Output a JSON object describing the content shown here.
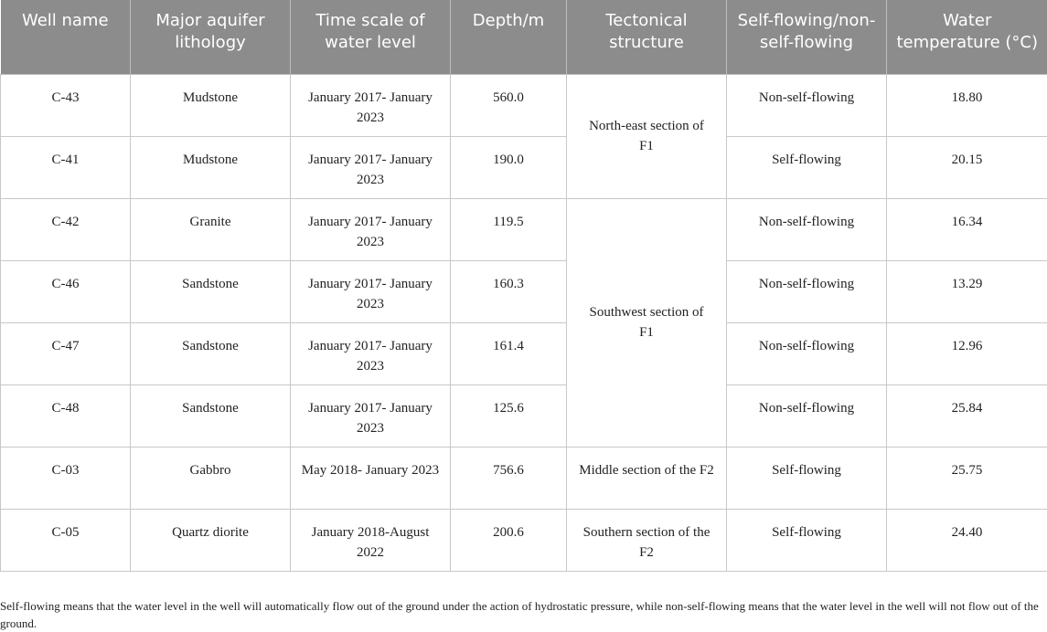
{
  "table": {
    "headers": [
      "Well name",
      "Major aquifer lithology",
      "Time scale of water level",
      "Depth/m",
      "Tectonical structure",
      "Self-flowing/non-self-flowing",
      "Water temperature (°C)"
    ],
    "rows": [
      {
        "well": "C-43",
        "lithology": "Mudstone",
        "time_scale": "January 2017- January 2023",
        "depth": "560.0",
        "flow": "Non-self-flowing",
        "temperature": "18.80"
      },
      {
        "well": "C-41",
        "lithology": "Mudstone",
        "time_scale": "January 2017- January 2023",
        "depth": "190.0",
        "flow": "Self-flowing",
        "temperature": "20.15"
      },
      {
        "well": "C-42",
        "lithology": "Granite",
        "time_scale": "January 2017- January 2023",
        "depth": "119.5",
        "flow": "Non-self-flowing",
        "temperature": "16.34"
      },
      {
        "well": "C-46",
        "lithology": "Sandstone",
        "time_scale": "January 2017- January 2023",
        "depth": "160.3",
        "flow": "Non-self-flowing",
        "temperature": "13.29"
      },
      {
        "well": "C-47",
        "lithology": "Sandstone",
        "time_scale": "January 2017- January 2023",
        "depth": "161.4",
        "flow": "Non-self-flowing",
        "temperature": "12.96"
      },
      {
        "well": "C-48",
        "lithology": "Sandstone",
        "time_scale": "January 2017- January 2023",
        "depth": "125.6",
        "flow": "Non-self-flowing",
        "temperature": "25.84"
      },
      {
        "well": "C-03",
        "lithology": "Gabbro",
        "time_scale": "May 2018- January 2023",
        "depth": "756.6",
        "flow": "Self-flowing",
        "temperature": "25.75"
      },
      {
        "well": "C-05",
        "lithology": "Quartz diorite",
        "time_scale": "January 2018-August 2022",
        "depth": "200.6",
        "flow": "Self-flowing",
        "temperature": "24.40"
      }
    ],
    "structures": [
      "North-east section of F1",
      "Southwest section of F1",
      "Middle section of the F2",
      "Southern section of the F2"
    ]
  },
  "footnote": "Self-flowing means that the water level in the well will automatically flow out of the ground under the action of hydrostatic pressure, while non-self-flowing means that the water level in the well will not flow out of the ground.",
  "colors": {
    "header_background": "#8c8c8c",
    "header_text": "#ffffff",
    "grid_line": "#c8c8c8"
  }
}
